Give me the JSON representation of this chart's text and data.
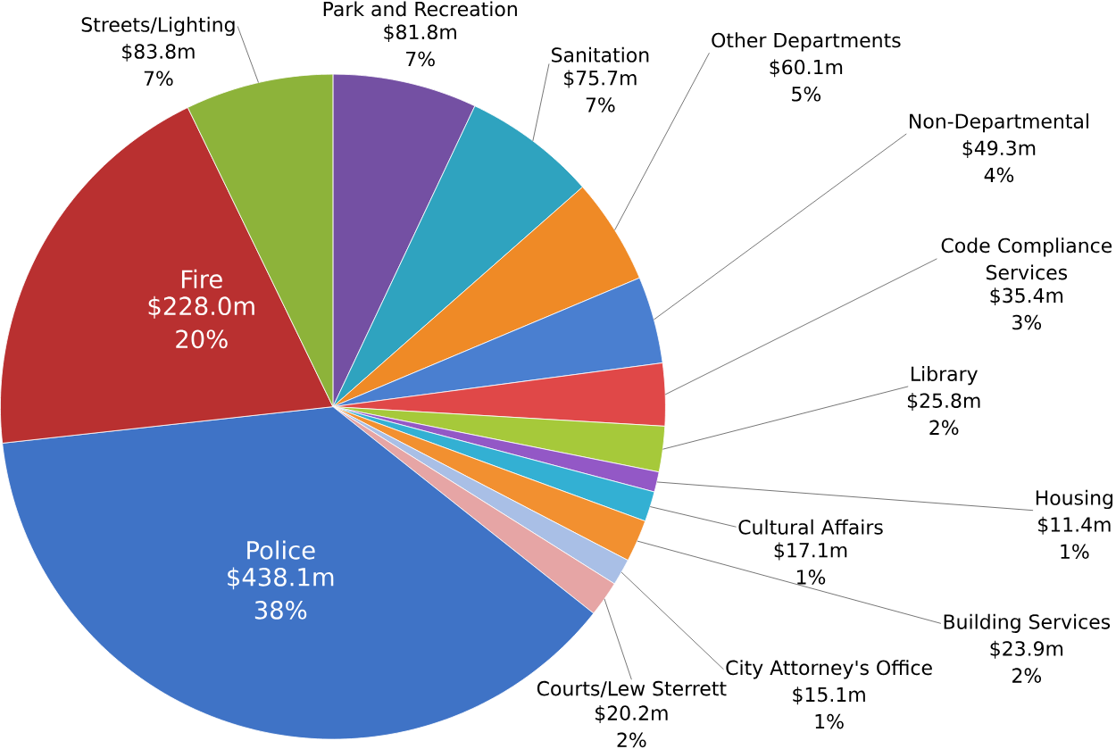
{
  "chart_data": {
    "type": "pie",
    "categories": [
      "Park and Recreation",
      "Sanitation",
      "Other Departments",
      "Non-Departmental",
      "Code Compliance Services",
      "Library",
      "Housing",
      "Cultural Affairs",
      "Building Services",
      "City Attorney's Office",
      "Courts/Lew Sterrett",
      "Police",
      "Fire",
      "Streets/Lighting"
    ],
    "values": [
      81.8,
      75.7,
      60.1,
      49.3,
      35.4,
      25.8,
      11.4,
      17.1,
      23.9,
      15.1,
      20.2,
      438.1,
      228.0,
      83.8
    ],
    "colors": [
      "#7450a3",
      "#2fa3bf",
      "#ef8a26",
      "#4a7fd0",
      "#e04848",
      "#a6c93a",
      "#9358c6",
      "#33b0d3",
      "#f29030",
      "#a9bfe6",
      "#e6a5a5",
      "#3f73c6",
      "#b93030",
      "#8db33a"
    ],
    "value_labels": [
      "$81.8m",
      "$75.7m",
      "$60.1m",
      "$49.3m",
      "$35.4m",
      "$25.8m",
      "$11.4m",
      "$17.1m",
      "$23.9m",
      "$15.1m",
      "$20.2m",
      "$438.1m",
      "$228.0m",
      "$83.8m"
    ],
    "annotations": [
      {
        "text": "7%",
        "x": "Park and Recreation"
      },
      {
        "text": "7%",
        "x": "Sanitation"
      },
      {
        "text": "5%",
        "x": "Other Departments"
      },
      {
        "text": "4%",
        "x": "Non-Departmental"
      },
      {
        "text": "3%",
        "x": "Code Compliance Services"
      },
      {
        "text": "2%",
        "x": "Library"
      },
      {
        "text": "1%",
        "x": "Housing"
      },
      {
        "text": "1%",
        "x": "Cultural Affairs"
      },
      {
        "text": "2%",
        "x": "Building Services"
      },
      {
        "text": "1%",
        "x": "City Attorney's Office"
      },
      {
        "text": "2%",
        "x": "Courts/Lew Sterrett"
      },
      {
        "text": "38%",
        "x": "Police"
      },
      {
        "text": "20%",
        "x": "Fire"
      },
      {
        "text": "7%",
        "x": "Streets/Lighting"
      }
    ]
  }
}
